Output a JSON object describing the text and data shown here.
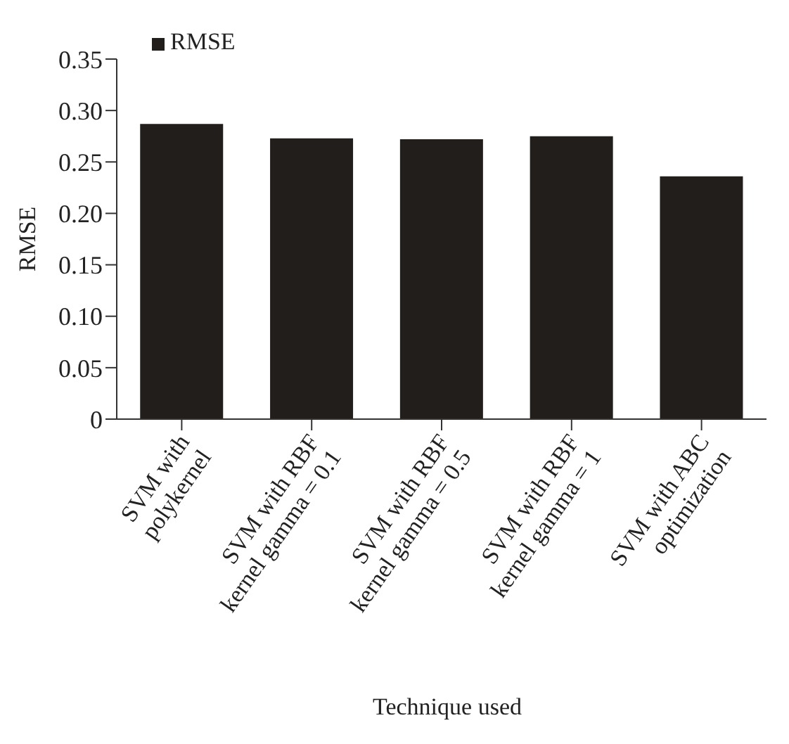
{
  "chart_data": {
    "type": "bar",
    "xlabel": "Technique used",
    "ylabel": "RMSE",
    "categories": [
      "SVM with polykernel",
      "SVM with RBF kernel gamma = 0.1",
      "SVM with RBF kernel gamma = 0.5",
      "SVM with RBF kernel gamma = 1",
      "SVM with ABC optimization"
    ],
    "series": [
      {
        "name": "RMSE",
        "color": "#221e1c",
        "values": [
          0.287,
          0.273,
          0.272,
          0.275,
          0.236
        ]
      }
    ],
    "ylim": [
      0,
      0.35
    ],
    "yticks": [
      {
        "value": 0,
        "label": "0"
      },
      {
        "value": 0.05,
        "label": "0.05"
      },
      {
        "value": 0.1,
        "label": "0.10"
      },
      {
        "value": 0.15,
        "label": "0.15"
      },
      {
        "value": 0.2,
        "label": "0.20"
      },
      {
        "value": 0.25,
        "label": "0.25"
      },
      {
        "value": 0.3,
        "label": "0.30"
      },
      {
        "value": 0.35,
        "label": "0.35"
      }
    ],
    "grid": false,
    "legend": "top left"
  }
}
